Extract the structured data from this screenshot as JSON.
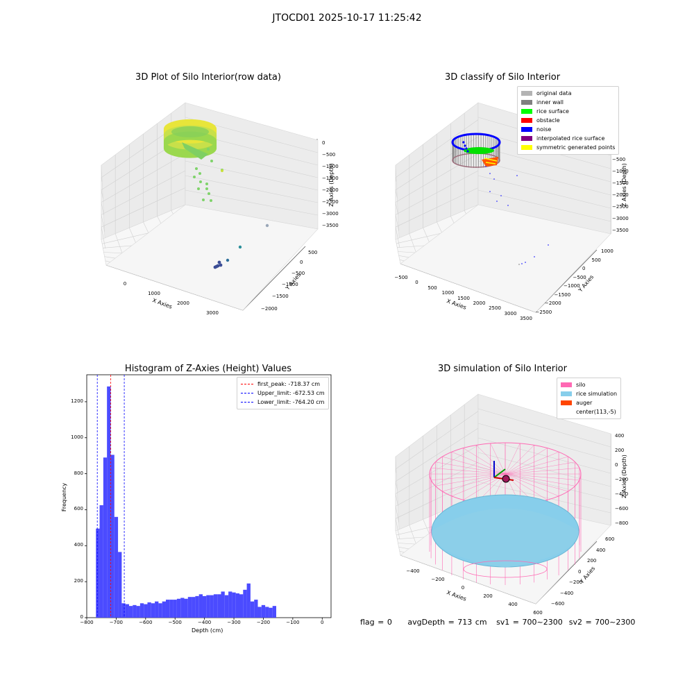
{
  "suptitle": "JTOCD01 2025-10-17 11:25:42",
  "colors": {
    "hist_bar": "#4b4bff",
    "red_line": "#ff0000",
    "blue_line": "#0000ff",
    "original": "#b3b3b3",
    "inner_wall": "#808080",
    "rice_surface": "#00ff00",
    "obstacle": "#ff0000",
    "noise": "#0000ff",
    "interpolated": "#800080",
    "symmetric": "#ffff00",
    "silo": "#ff69b4",
    "rice_sim": "#87ceeb",
    "auger": "#ff4500"
  },
  "panel1": {
    "title": "3D Plot of Silo Interior(row data)",
    "xlabel": "X Axies",
    "ylabel": "Y Axies",
    "zlabel": "Z Axies (Depth)",
    "xticks": [
      "0",
      "1000",
      "2000",
      "3000"
    ],
    "yticks": [
      "500",
      "0",
      "−500",
      "−1000",
      "−1500",
      "−2000"
    ],
    "zticks": [
      "0",
      "−500",
      "−1000",
      "−1500",
      "−2000",
      "−2500",
      "−3000",
      "−3500"
    ]
  },
  "panel2": {
    "title": "3D classify of Silo Interior",
    "xlabel": "X Axies",
    "ylabel": "Y Axies",
    "zlabel": "Z Axies (Depth)",
    "xticks": [
      "−500",
      "0",
      "500",
      "1000",
      "1500",
      "2000",
      "2500",
      "3000",
      "3500"
    ],
    "yticks": [
      "1000",
      "500",
      "0",
      "−500",
      "−1000",
      "−1500",
      "−2000",
      "−2500"
    ],
    "zticks": [
      "0",
      "−500",
      "−1000",
      "−1500",
      "−2000",
      "−2500",
      "−3000",
      "−3500"
    ],
    "legend": [
      "original data",
      "inner wall",
      "rice surface",
      "obstacle",
      "noise",
      "interpolated rice surface",
      "symmetric generated points"
    ]
  },
  "panel4": {
    "title": "3D simulation of Silo Interior",
    "xlabel": "X Axies",
    "ylabel": "Y Axies",
    "zlabel": "Z Axies (Depth)",
    "xticks": [
      "−400",
      "−200",
      "0",
      "200",
      "400",
      "600"
    ],
    "yticks": [
      "600",
      "400",
      "200",
      "0",
      "−200",
      "−400",
      "−600"
    ],
    "zticks": [
      "400",
      "200",
      "0",
      "−200",
      "−400",
      "−600",
      "−800"
    ],
    "legend": [
      "silo",
      "rice simulation",
      "auger",
      "center(113,-5)"
    ]
  },
  "footer": {
    "flag": "flag = 0",
    "avg": "avgDepth = 713 cm",
    "sv1": "sv1 = 700~2300",
    "sv2": "sv2 = 700~2300"
  },
  "chart_data": [
    {
      "type": "scatter",
      "title": "3D Plot of Silo Interior(row data)",
      "xlabel": "X Axies",
      "ylabel": "Y Axies",
      "zlabel": "Z Axies (Depth)"
    },
    {
      "type": "scatter",
      "title": "3D classify of Silo Interior",
      "legend": [
        "original data",
        "inner wall",
        "rice surface",
        "obstacle",
        "noise",
        "interpolated rice surface",
        "symmetric generated points"
      ],
      "legend_position": "top-right"
    },
    {
      "type": "bar",
      "title": "Histogram of Z-Axies (Height) Values",
      "xlabel": "Depth (cm)",
      "ylabel": "Frequency",
      "xlim": [
        -800,
        30
      ],
      "ylim": [
        0,
        1350
      ],
      "xticks": [
        "−800",
        "−700",
        "−600",
        "−500",
        "−400",
        "−300",
        "−200",
        "−100",
        "0"
      ],
      "xtick_values": [
        -800,
        -700,
        -600,
        -500,
        -400,
        -300,
        -200,
        -100,
        0
      ],
      "yticks": [
        "0",
        "200",
        "400",
        "600",
        "800",
        "1000",
        "1200"
      ],
      "ytick_values": [
        0,
        200,
        400,
        600,
        800,
        1000,
        1200
      ],
      "bin_width": 12.5,
      "bin_start": -768.75,
      "values": [
        495,
        625,
        890,
        1285,
        905,
        560,
        365,
        80,
        75,
        65,
        70,
        65,
        80,
        75,
        85,
        80,
        90,
        80,
        90,
        100,
        100,
        100,
        105,
        110,
        105,
        115,
        115,
        120,
        130,
        120,
        125,
        125,
        130,
        130,
        145,
        125,
        145,
        140,
        135,
        130,
        155,
        190,
        90,
        100,
        60,
        70,
        60,
        55,
        65
      ],
      "lines": [
        {
          "label": "first_peak: -718.37 cm",
          "x": -718.37,
          "style": "dashed",
          "color": "#ff0000"
        },
        {
          "label": "Upper_limit: -672.53 cm",
          "x": -672.53,
          "style": "dashed",
          "color": "#0000ff"
        },
        {
          "label": "Lower_limit: -764.20 cm",
          "x": -764.2,
          "style": "dashed",
          "color": "#0000ff"
        }
      ],
      "legend_position": "top-right"
    },
    {
      "type": "scatter",
      "title": "3D simulation of Silo Interior",
      "legend": [
        "silo",
        "rice simulation",
        "auger",
        "center(113,-5)"
      ],
      "legend_position": "top-right"
    }
  ]
}
